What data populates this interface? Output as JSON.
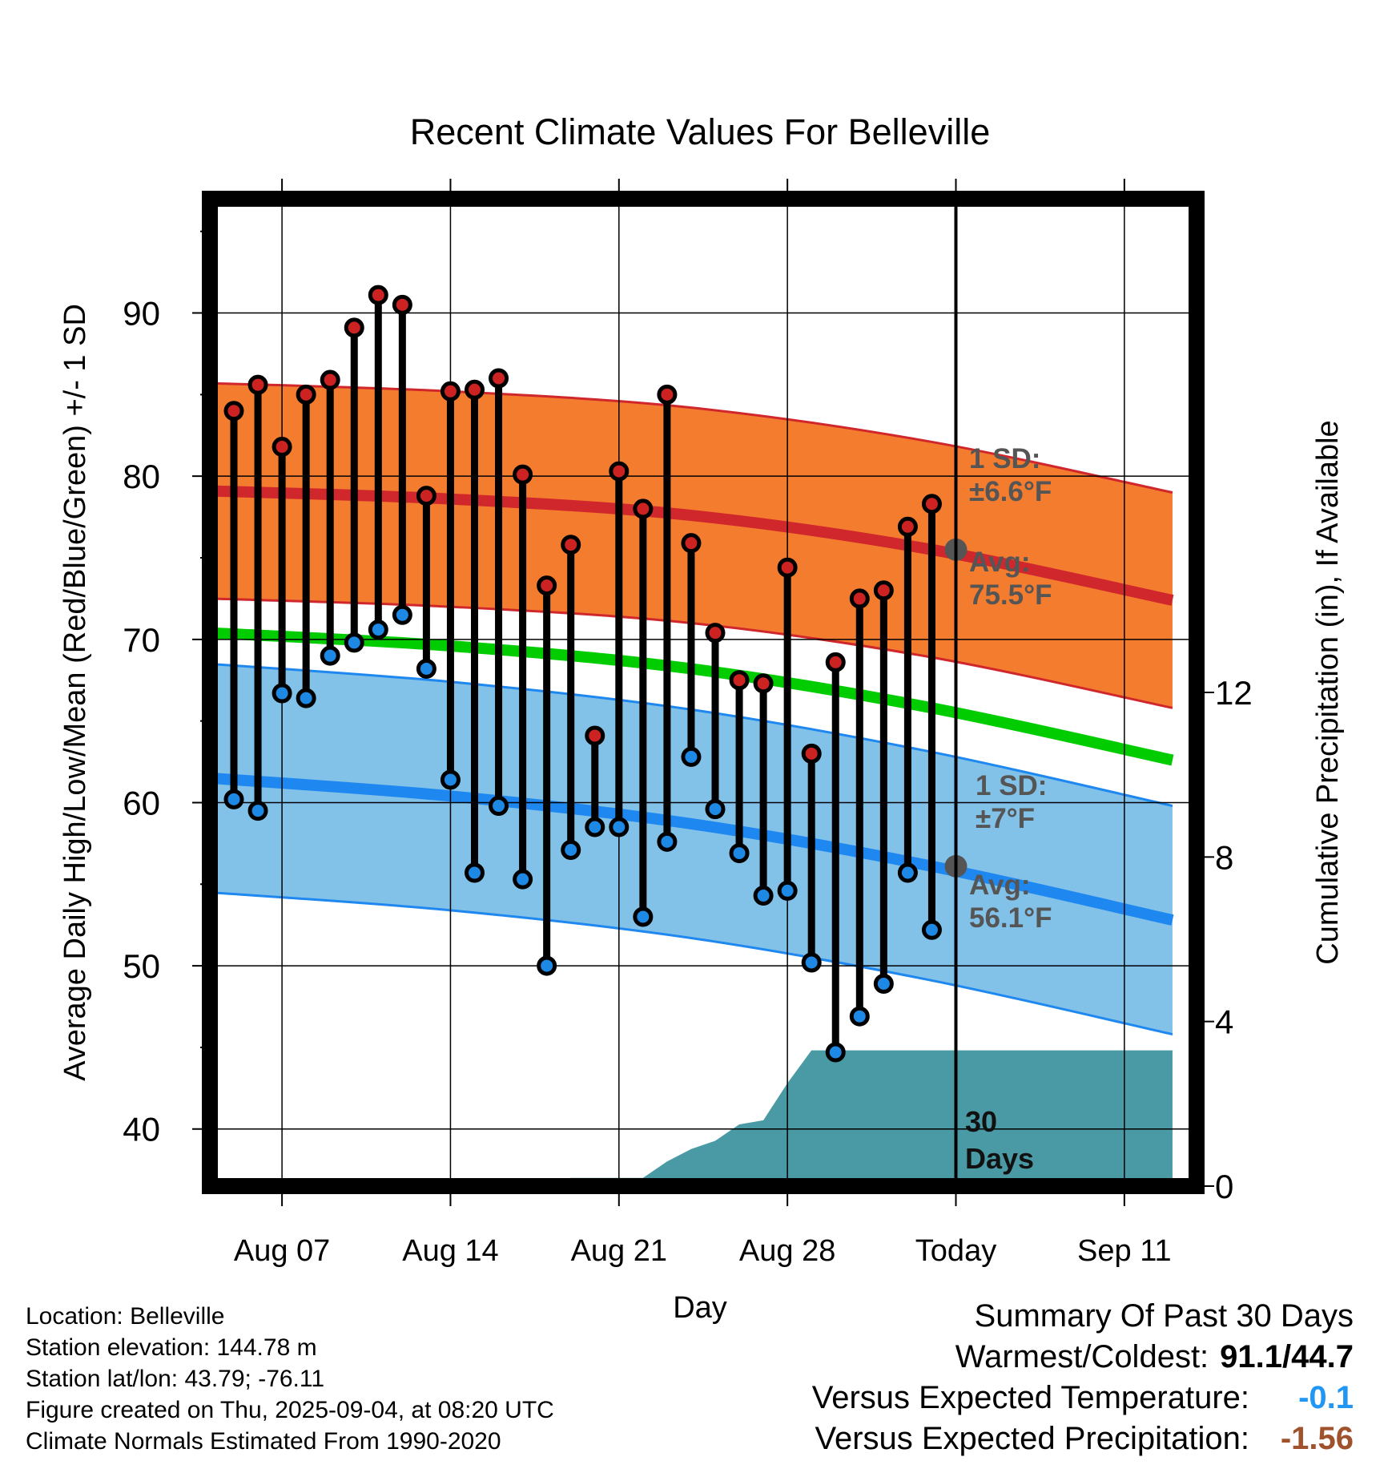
{
  "chart_data": {
    "type": "line",
    "title": "Recent Climate Values For Belleville",
    "xlabel": "Day",
    "ylabel": "Average Daily High/Low/Mean (Red/Blue/Green) +/- 1 SD",
    "y2label": "Cumulative Precipitation (in), If Available",
    "ylim": [
      36.5,
      97
    ],
    "y2lim": [
      0,
      24
    ],
    "y_ticks": [
      40,
      50,
      60,
      70,
      80,
      90
    ],
    "y2_ticks": [
      0,
      4,
      8,
      12
    ],
    "x_tick_labels": [
      "Aug 07",
      "Aug 14",
      "Aug 21",
      "Aug 28",
      "Today",
      "Sep 11"
    ],
    "x_dates": [
      "2025-08-05",
      "2025-08-06",
      "2025-08-07",
      "2025-08-08",
      "2025-08-09",
      "2025-08-10",
      "2025-08-11",
      "2025-08-12",
      "2025-08-13",
      "2025-08-14",
      "2025-08-15",
      "2025-08-16",
      "2025-08-17",
      "2025-08-18",
      "2025-08-19",
      "2025-08-20",
      "2025-08-21",
      "2025-08-22",
      "2025-08-23",
      "2025-08-24",
      "2025-08-25",
      "2025-08-26",
      "2025-08-27",
      "2025-08-28",
      "2025-08-29",
      "2025-08-30",
      "2025-08-31",
      "2025-09-01",
      "2025-09-02",
      "2025-09-03"
    ],
    "daily_high": [
      84.0,
      85.6,
      81.8,
      85.0,
      85.9,
      89.1,
      91.1,
      90.5,
      78.8,
      85.2,
      85.3,
      86.0,
      80.1,
      73.3,
      75.8,
      64.1,
      80.3,
      78.0,
      85.0,
      75.9,
      70.4,
      67.5,
      67.3,
      74.4,
      63.0,
      68.6,
      72.5,
      73.0,
      76.9,
      78.3
    ],
    "daily_low": [
      60.2,
      59.5,
      66.7,
      66.4,
      69.0,
      69.8,
      70.6,
      71.5,
      68.2,
      61.4,
      55.7,
      59.8,
      55.3,
      50.0,
      57.1,
      58.5,
      58.5,
      53.0,
      57.6,
      62.8,
      59.6,
      56.9,
      54.3,
      54.6,
      50.2,
      44.7,
      46.9,
      48.9,
      55.7,
      52.2
    ],
    "normal_dates": [
      "2025-08-04",
      "2025-08-14",
      "2025-08-24",
      "2025-09-03",
      "2025-09-13"
    ],
    "normal_high": [
      79.1,
      78.6,
      77.6,
      75.5,
      72.4
    ],
    "normal_high_sd": 6.6,
    "normal_low": [
      61.5,
      60.4,
      58.7,
      56.1,
      52.8
    ],
    "normal_low_sd": 7,
    "normal_mean": [
      70.4,
      69.6,
      68.2,
      65.8,
      62.6
    ],
    "precip_dates": [
      "2025-08-17",
      "2025-08-18",
      "2025-08-19",
      "2025-08-20",
      "2025-08-21",
      "2025-08-22",
      "2025-08-23",
      "2025-08-24",
      "2025-08-25",
      "2025-08-26",
      "2025-08-27",
      "2025-08-28",
      "2025-08-29",
      "2025-08-30",
      "2025-09-03",
      "2025-09-13"
    ],
    "precip_cumulative": [
      0,
      0,
      0.2,
      0.2,
      0.2,
      0.2,
      0.6,
      0.9,
      1.1,
      1.5,
      1.6,
      2.5,
      3.3,
      3.3,
      3.3,
      3.3
    ],
    "today": "2025-09-03",
    "annotations": {
      "high_sd": [
        "1 SD:",
        "±6.6°F"
      ],
      "high_avg": [
        "Avg:",
        "75.5°F"
      ],
      "low_sd": [
        "1 SD:",
        "±7°F"
      ],
      "low_avg": [
        "Avg:",
        "56.1°F"
      ],
      "days": [
        "30",
        "Days"
      ]
    },
    "colors": {
      "high_band": "#f47c2e",
      "high_line": "#d0272c",
      "low_band": "#82c1e8",
      "low_line": "#1e88f0",
      "mean_line": "#00cc00",
      "precip": "#4a9aa5",
      "high_dot": "#cc2222",
      "low_dot": "#1e88e5",
      "avg_dot": "#555555",
      "annotation_text": "#555555"
    }
  },
  "info": {
    "location": "Location: Belleville",
    "elevation": "Station elevation: 144.78 m",
    "latlon": "Station lat/lon: 43.79; -76.11",
    "created": "Figure created on Thu, 2025-09-04, at 08:20 UTC",
    "normals": "Climate Normals Estimated From 1990-2020"
  },
  "summary": {
    "title": "Summary Of Past 30 Days",
    "warmest_coldest_label": "Warmest/Coldest:",
    "warmest_coldest_value": "91.1/44.7",
    "temp_label": "Versus Expected Temperature:",
    "temp_value": "-0.1",
    "precip_label": "Versus Expected Precipitation:",
    "precip_value": "-1.56"
  }
}
